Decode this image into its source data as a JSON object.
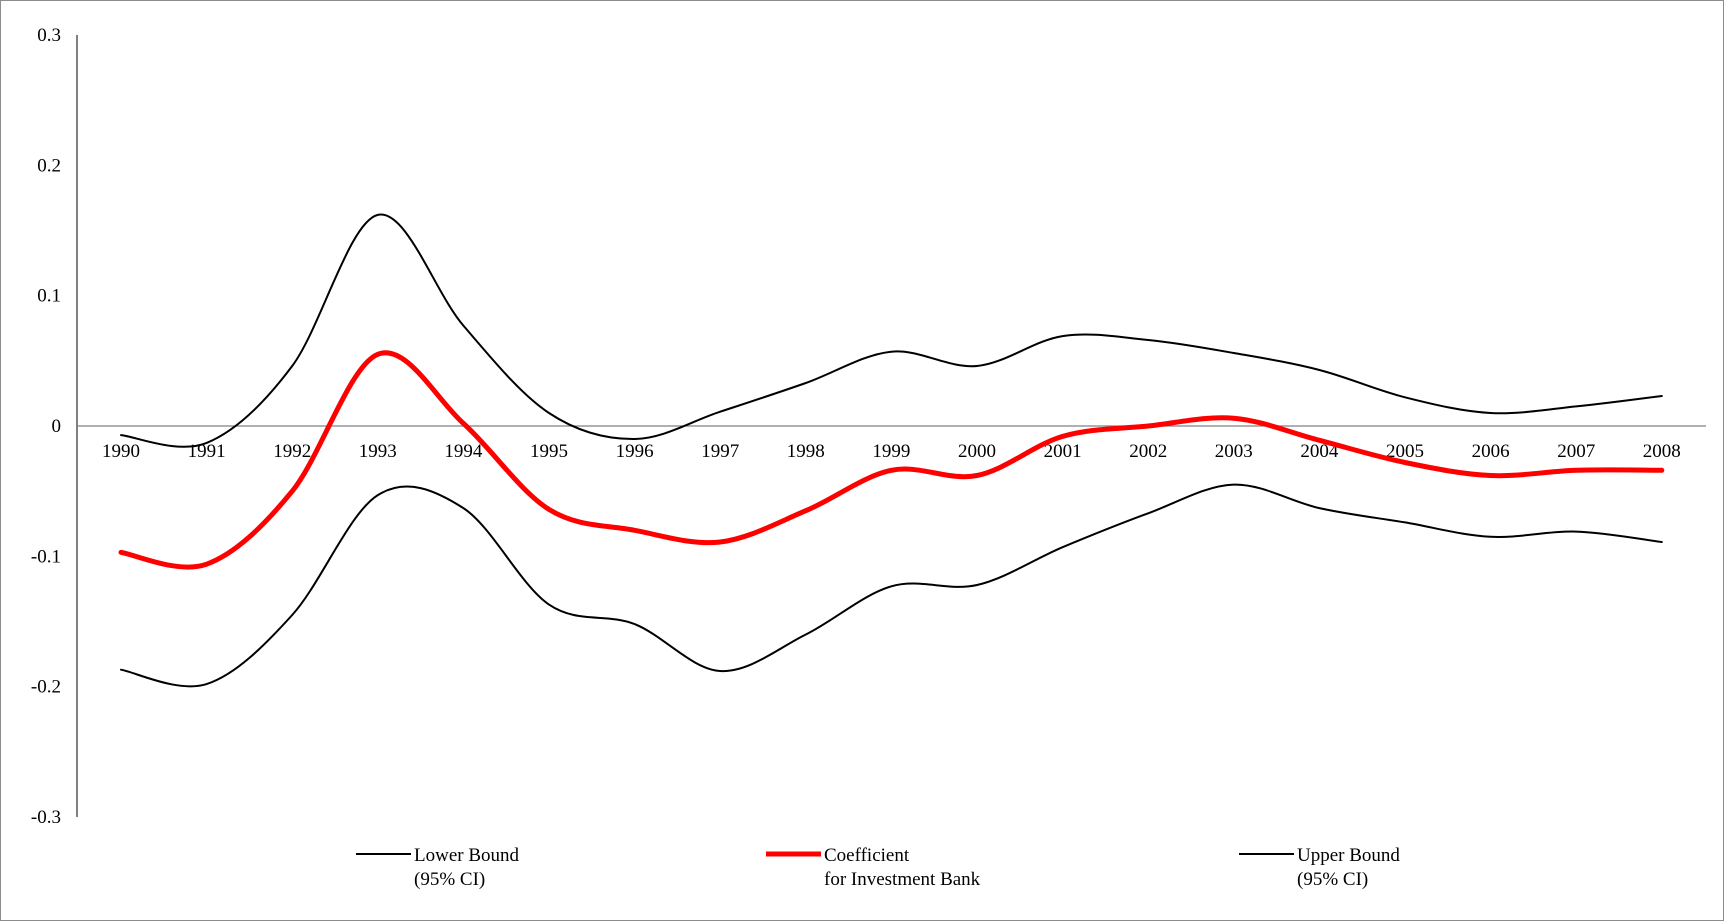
{
  "chart_data": {
    "type": "line",
    "title": "",
    "xlabel": "",
    "ylabel": "",
    "x": [
      "1990",
      "1991",
      "1992",
      "1993",
      "1994",
      "1995",
      "1996",
      "1997",
      "1998",
      "1999",
      "2000",
      "2001",
      "2002",
      "2003",
      "2004",
      "2005",
      "2006",
      "2007",
      "2008"
    ],
    "ylim": [
      -0.3,
      0.3
    ],
    "yticks": [
      "0.3",
      "0.2",
      "0.1",
      "0",
      "-0.1",
      "-0.2",
      "-0.3"
    ],
    "ytick_values": [
      0.3,
      0.2,
      0.1,
      0,
      -0.1,
      -0.2,
      -0.3
    ],
    "grid": false,
    "legend_position": "bottom",
    "series": [
      {
        "name_line1": "Lower Bound",
        "name_line2": "(95% CI)",
        "color": "#000000",
        "values": [
          -0.187,
          -0.198,
          -0.145,
          -0.053,
          -0.063,
          -0.137,
          -0.152,
          -0.188,
          -0.16,
          -0.123,
          -0.122,
          -0.093,
          -0.067,
          -0.045,
          -0.063,
          -0.074,
          -0.085,
          -0.081,
          -0.089
        ]
      },
      {
        "name_line1": "Coefficient",
        "name_line2": "for Investment Bank",
        "color": "#ff0000",
        "values": [
          -0.097,
          -0.106,
          -0.05,
          0.055,
          0.002,
          -0.064,
          -0.08,
          -0.089,
          -0.065,
          -0.034,
          -0.038,
          -0.008,
          0.0,
          0.006,
          -0.011,
          -0.028,
          -0.038,
          -0.034,
          -0.034
        ]
      },
      {
        "name_line1": "Upper Bound",
        "name_line2": "(95% CI)",
        "color": "#000000",
        "values": [
          -0.007,
          -0.013,
          0.046,
          0.162,
          0.077,
          0.01,
          -0.01,
          0.011,
          0.033,
          0.057,
          0.046,
          0.069,
          0.066,
          0.056,
          0.043,
          0.022,
          0.01,
          0.015,
          0.023
        ]
      }
    ]
  }
}
